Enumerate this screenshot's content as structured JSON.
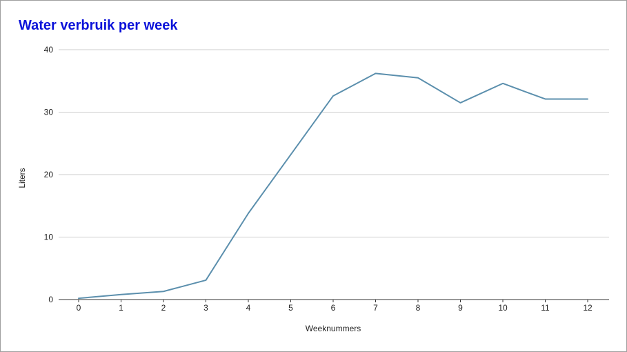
{
  "chart_data": {
    "type": "line",
    "title": "Water verbruik per week",
    "xlabel": "Weeknummers",
    "ylabel": "Liters",
    "x": [
      0,
      1,
      2,
      3,
      4,
      5,
      6,
      7,
      8,
      9,
      10,
      11,
      12
    ],
    "series": [
      {
        "values": [
          0.2,
          0.8,
          1.3,
          3.1,
          13.8,
          23.2,
          32.6,
          36.2,
          35.5,
          31.5,
          34.6,
          32.1,
          32.1
        ]
      }
    ],
    "xlim": [
      0,
      12
    ],
    "ylim": [
      0,
      40
    ],
    "yticks": [
      0,
      10,
      20,
      30,
      40
    ],
    "xticks": [
      0,
      1,
      2,
      3,
      4,
      5,
      6,
      7,
      8,
      9,
      10,
      11,
      12
    ],
    "grid": "horizontal",
    "legend": "none",
    "colors": {
      "title": "#0b12d9",
      "line": "#5b8fad",
      "grid": "#cccccc",
      "axis": "#333333",
      "text": "#222222"
    }
  }
}
